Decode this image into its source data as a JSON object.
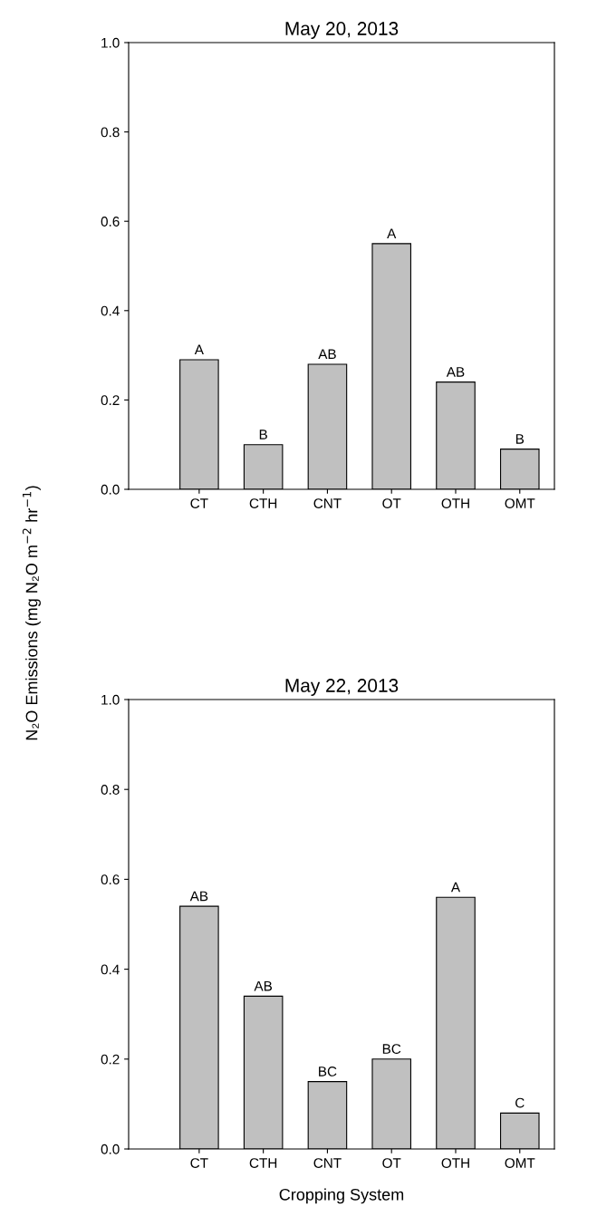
{
  "chart_data": [
    {
      "type": "bar",
      "title": "May 20, 2013",
      "ylabel": "N₂O Emissions (mg N₂O m$^{−2}$ hr$^{−1}$)",
      "categories": [
        "CT",
        "CTH",
        "CNT",
        "OT",
        "OTH",
        "OMT"
      ],
      "values": [
        0.29,
        0.1,
        0.28,
        0.55,
        0.24,
        0.09
      ],
      "color": "#c0c0c0",
      "ylim": [
        0,
        1.0
      ],
      "yticks": [
        {
          "value": 0,
          "label": "0.0"
        },
        {
          "value": 0.2,
          "label": "0.2"
        },
        {
          "value": 0.4,
          "label": "0.4"
        },
        {
          "value": 0.6,
          "label": "0.6"
        },
        {
          "value": 0.8,
          "label": "0.8"
        },
        {
          "value": 1.0,
          "label": "1.0"
        }
      ],
      "grid": false,
      "legend": false,
      "annotations": [
        {
          "text": "A",
          "x": "CT",
          "y": 0.29
        },
        {
          "text": "B",
          "x": "CTH",
          "y": 0.1
        },
        {
          "text": "AB",
          "x": "CNT",
          "y": 0.28
        },
        {
          "text": "A",
          "x": "OT",
          "y": 0.55
        },
        {
          "text": "AB",
          "x": "OTH",
          "y": 0.24
        },
        {
          "text": "B",
          "x": "OMT",
          "y": 0.09
        }
      ]
    },
    {
      "type": "bar",
      "title": "May 22, 2013",
      "xlabel": "Cropping System",
      "categories": [
        "CT",
        "CTH",
        "CNT",
        "OT",
        "OTH",
        "OMT"
      ],
      "values": [
        0.54,
        0.34,
        0.15,
        0.2,
        0.56,
        0.08
      ],
      "color": "#c0c0c0",
      "ylim": [
        0,
        1.0
      ],
      "yticks": [
        {
          "value": 0,
          "label": "0.0"
        },
        {
          "value": 0.2,
          "label": "0.2"
        },
        {
          "value": 0.4,
          "label": "0.4"
        },
        {
          "value": 0.6,
          "label": "0.6"
        },
        {
          "value": 0.8,
          "label": "0.8"
        },
        {
          "value": 1.0,
          "label": "1.0"
        }
      ],
      "grid": false,
      "legend": false,
      "annotations": [
        {
          "text": "AB",
          "x": "CT",
          "y": 0.54
        },
        {
          "text": "AB",
          "x": "CTH",
          "y": 0.34
        },
        {
          "text": "BC",
          "x": "CNT",
          "y": 0.15
        },
        {
          "text": "BC",
          "x": "OT",
          "y": 0.2
        },
        {
          "text": "A",
          "x": "OTH",
          "y": 0.56
        },
        {
          "text": "C",
          "x": "OMT",
          "y": 0.08
        }
      ]
    }
  ]
}
